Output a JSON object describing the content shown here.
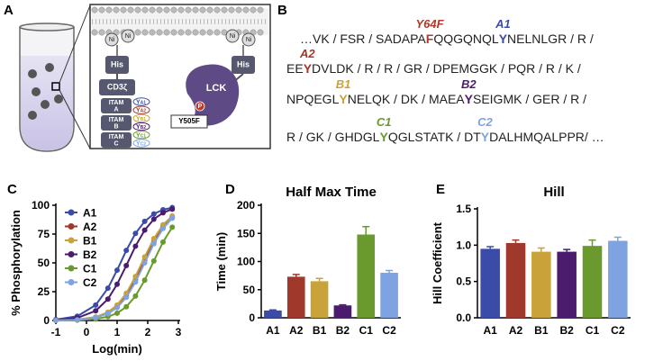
{
  "panel_labels": [
    "A",
    "B",
    "C",
    "D",
    "E"
  ],
  "diagram": {
    "ni_labels": [
      "Ni",
      "Ni",
      "Ni",
      "Ni"
    ],
    "his_labels": [
      "His",
      "His"
    ],
    "cd3": "CD3ζ",
    "itams": [
      {
        "label": "ITAM",
        "letter": "A"
      },
      {
        "label": "ITAM",
        "letter": "B"
      },
      {
        "label": "ITAM",
        "letter": "C"
      }
    ],
    "tyrosines": [
      {
        "letter": "Y",
        "sub": "A1",
        "color": "#3b4ba8"
      },
      {
        "letter": "Y",
        "sub": "A2",
        "color": "#a0392b"
      },
      {
        "letter": "Y",
        "sub": "B1",
        "color": "#c9a33a"
      },
      {
        "letter": "Y",
        "sub": "B2",
        "color": "#4b1c6e"
      },
      {
        "letter": "Y",
        "sub": "C1",
        "color": "#6a9a2e"
      },
      {
        "letter": "Y",
        "sub": "C2",
        "color": "#7fa3e0"
      }
    ],
    "kinase": "LCK",
    "phospho": "P",
    "mutant": "Y505F"
  },
  "sequence": {
    "lines": [
      {
        "segments": [
          {
            "text": "…VK / FSR / SADAPA"
          },
          {
            "text": "F",
            "label": "Y64F",
            "color": "#b03a2e"
          },
          {
            "text": "QQGQNQL"
          },
          {
            "text": "Y",
            "label": "A1",
            "color": "#3b4ba8"
          },
          {
            "text": "NELNLGR / R /"
          }
        ]
      },
      {
        "segments": [
          {
            "text": "EE"
          },
          {
            "text": "Y",
            "label": "A2",
            "color": "#a0392b"
          },
          {
            "text": "DVLDK / R / R / GR / DPEMGGK / PQR / R / K /"
          }
        ]
      },
      {
        "segments": [
          {
            "text": "NPQEGL"
          },
          {
            "text": "Y",
            "label": "B1",
            "color": "#c9a33a"
          },
          {
            "text": "NELQK / DK / MAEA"
          },
          {
            "text": "Y",
            "label": "B2",
            "color": "#4b1c6e"
          },
          {
            "text": "SEIGMK / GER / R /"
          }
        ]
      },
      {
        "segments": [
          {
            "text": "R / GK / GHDGL"
          },
          {
            "text": "Y",
            "label": "C1",
            "color": "#6a9a2e"
          },
          {
            "text": "QGLSTATK / DT"
          },
          {
            "text": "Y",
            "label": "C2",
            "color": "#7fa3e0"
          },
          {
            "text": "DALHMQALPPR/ …"
          }
        ]
      }
    ]
  },
  "chart_data": [
    {
      "type": "line",
      "xlabel": "Log(min)",
      "ylabel": "% Phosphorylation",
      "xlim": [
        -1,
        3
      ],
      "xticks": [
        -1,
        0,
        1,
        2,
        3
      ],
      "ylim": [
        0,
        100
      ],
      "yticks": [
        0,
        25,
        50,
        75,
        100
      ],
      "legend": "upper left",
      "x": [
        -1,
        -0.3,
        0.3,
        0.7,
        1.0,
        1.3,
        1.6,
        1.9,
        2.2,
        2.5,
        2.8
      ],
      "series": [
        {
          "name": "A1",
          "color": "#3b4ba8",
          "values": [
            0.8,
            3.7,
            13.4,
            28.0,
            43.7,
            60.8,
            75.6,
            86.0,
            92.5,
            96.1,
            98.0
          ]
        },
        {
          "name": "A2",
          "color": "#a0392b",
          "values": [
            0.1,
            0.7,
            2.7,
            6.5,
            12.1,
            21.6,
            35.5,
            52.3,
            68.6,
            81.4,
            89.7
          ]
        },
        {
          "name": "B1",
          "color": "#c9a33a",
          "values": [
            0.15,
            0.8,
            3.0,
            7.2,
            13.4,
            23.6,
            38.2,
            55.2,
            71.1,
            83.1,
            90.7
          ]
        },
        {
          "name": "B2",
          "color": "#4b1c6e",
          "values": [
            0.5,
            2.2,
            8.4,
            18.6,
            31.4,
            47.7,
            64.5,
            78.4,
            87.9,
            93.5,
            96.6
          ]
        },
        {
          "name": "C1",
          "color": "#6a9a2e",
          "values": [
            0.1,
            0.3,
            1.3,
            3.3,
            6.3,
            11.9,
            21.2,
            35.0,
            51.7,
            68.1,
            81.0
          ]
        },
        {
          "name": "C2",
          "color": "#7fa3e0",
          "values": [
            0.1,
            0.6,
            2.5,
            5.9,
            11.2,
            20.1,
            33.4,
            50.0,
            66.6,
            79.9,
            88.8
          ]
        }
      ]
    },
    {
      "type": "bar",
      "title": "Half Max Time",
      "ylabel": "Time (min)",
      "categories": [
        "A1",
        "A2",
        "B1",
        "B2",
        "C1",
        "C2"
      ],
      "values": [
        13,
        73,
        65,
        22,
        148,
        80
      ],
      "errors": [
        1,
        4,
        5,
        1,
        14,
        4
      ],
      "colors": [
        "#3b4ba8",
        "#a0392b",
        "#c9a33a",
        "#4b1c6e",
        "#6a9a2e",
        "#7fa3e0"
      ],
      "ylim": [
        0,
        200
      ],
      "yticks": [
        0,
        50,
        100,
        150,
        200
      ]
    },
    {
      "type": "bar",
      "title": "Hill",
      "ylabel": "Hill Coefficient",
      "categories": [
        "A1",
        "A2",
        "B1",
        "B2",
        "C1",
        "C2"
      ],
      "values": [
        0.95,
        1.03,
        0.91,
        0.91,
        0.99,
        1.06
      ],
      "errors": [
        0.03,
        0.04,
        0.05,
        0.03,
        0.08,
        0.05
      ],
      "colors": [
        "#3b4ba8",
        "#a0392b",
        "#c9a33a",
        "#4b1c6e",
        "#6a9a2e",
        "#7fa3e0"
      ],
      "ylim": [
        0,
        1.5
      ],
      "yticks": [
        {
          "value": 0,
          "label": "0.0"
        },
        {
          "value": 0.5,
          "label": "0.5"
        },
        {
          "value": 1.0,
          "label": "1.0"
        },
        {
          "value": 1.5,
          "label": "1.5"
        }
      ]
    }
  ]
}
